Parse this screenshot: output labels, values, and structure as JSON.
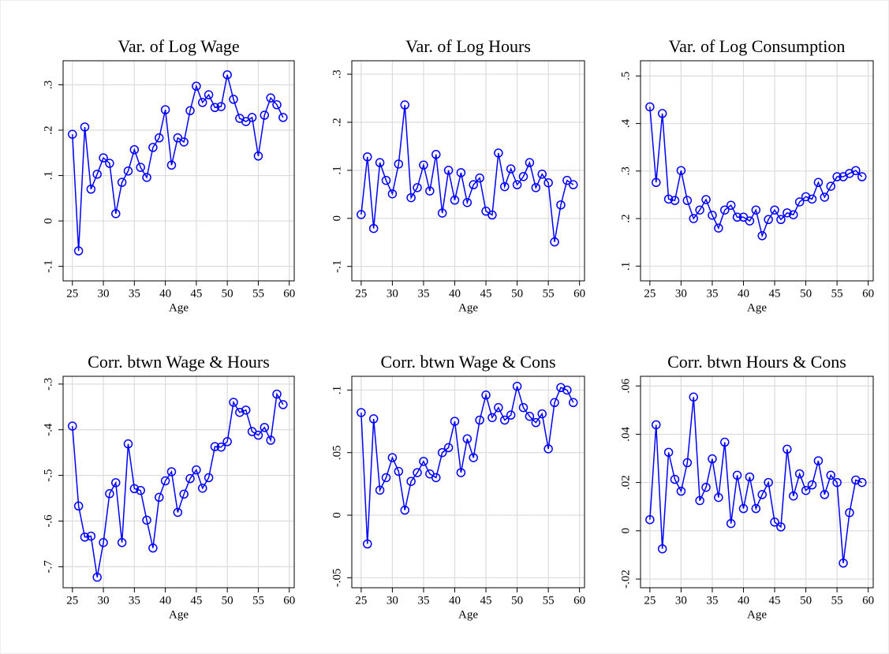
{
  "chart_data": [
    {
      "type": "line",
      "title": "Var. of Log Wage",
      "xlabel": "Age",
      "x": [
        25,
        26,
        27,
        28,
        29,
        30,
        31,
        32,
        33,
        34,
        35,
        36,
        37,
        38,
        39,
        40,
        41,
        42,
        43,
        44,
        45,
        46,
        47,
        48,
        49,
        50,
        51,
        52,
        53,
        54,
        55,
        56,
        57,
        58,
        59
      ],
      "series": [
        {
          "color": "#0000ff",
          "values": [
            0.191,
            -0.066,
            0.207,
            0.07,
            0.103,
            0.139,
            0.127,
            0.016,
            0.085,
            0.11,
            0.157,
            0.118,
            0.096,
            0.162,
            0.183,
            0.245,
            0.123,
            0.183,
            0.174,
            0.243,
            0.297,
            0.261,
            0.278,
            0.25,
            0.252,
            0.322,
            0.268,
            0.226,
            0.219,
            0.228,
            0.143,
            0.233,
            0.271,
            0.256,
            0.228
          ]
        }
      ],
      "xlim": [
        23.5,
        60.8
      ],
      "ylim": [
        -0.132,
        0.353
      ],
      "xticks": [
        25,
        30,
        35,
        40,
        45,
        50,
        55,
        60
      ],
      "yticks": [
        {
          "value": -0.1,
          "label": "-.1"
        },
        0,
        {
          "value": 0.1,
          "label": ".1"
        },
        {
          "value": 0.2,
          "label": ".2"
        },
        {
          "value": 0.3,
          "label": ".3"
        }
      ],
      "grid": true
    },
    {
      "type": "line",
      "title": "Var. of Log Hours",
      "xlabel": "Age",
      "x": [
        25,
        26,
        27,
        28,
        29,
        30,
        31,
        32,
        33,
        34,
        35,
        36,
        37,
        38,
        39,
        40,
        41,
        42,
        43,
        44,
        45,
        46,
        47,
        48,
        49,
        50,
        51,
        52,
        53,
        54,
        55,
        56,
        57,
        58,
        59
      ],
      "series": [
        {
          "color": "#0000ff",
          "values": [
            0.008,
            0.128,
            -0.021,
            0.116,
            0.079,
            0.051,
            0.113,
            0.236,
            0.043,
            0.064,
            0.111,
            0.057,
            0.133,
            0.011,
            0.1,
            0.038,
            0.095,
            0.033,
            0.07,
            0.084,
            0.015,
            0.007,
            0.136,
            0.066,
            0.103,
            0.07,
            0.087,
            0.116,
            0.064,
            0.092,
            0.074,
            -0.049,
            0.028,
            0.079,
            0.07
          ]
        }
      ],
      "xlim": [
        23.5,
        60.8
      ],
      "ylim": [
        -0.13,
        0.328
      ],
      "xticks": [
        25,
        30,
        35,
        40,
        45,
        50,
        55,
        60
      ],
      "yticks": [
        {
          "value": -0.1,
          "label": "-.1"
        },
        0,
        {
          "value": 0.1,
          "label": ".1"
        },
        {
          "value": 0.2,
          "label": ".2"
        },
        {
          "value": 0.3,
          "label": ".3"
        }
      ],
      "grid": true
    },
    {
      "type": "line",
      "title": "Var. of Log Consumption",
      "xlabel": "Age",
      "x": [
        25,
        26,
        27,
        28,
        29,
        30,
        31,
        32,
        33,
        34,
        35,
        36,
        37,
        38,
        39,
        40,
        41,
        42,
        43,
        44,
        45,
        46,
        47,
        48,
        49,
        50,
        51,
        52,
        53,
        54,
        55,
        56,
        57,
        58,
        59
      ],
      "series": [
        {
          "color": "#0000ff",
          "values": [
            0.435,
            0.276,
            0.421,
            0.241,
            0.238,
            0.301,
            0.238,
            0.2,
            0.218,
            0.24,
            0.207,
            0.18,
            0.218,
            0.228,
            0.203,
            0.203,
            0.195,
            0.218,
            0.164,
            0.198,
            0.218,
            0.198,
            0.212,
            0.208,
            0.235,
            0.246,
            0.241,
            0.276,
            0.245,
            0.268,
            0.288,
            0.288,
            0.295,
            0.301,
            0.288
          ]
        }
      ],
      "xlim": [
        23.5,
        60.8
      ],
      "ylim": [
        0.069,
        0.532
      ],
      "xticks": [
        25,
        30,
        35,
        40,
        45,
        50,
        55,
        60
      ],
      "yticks": [
        {
          "value": 0.1,
          "label": ".1"
        },
        {
          "value": 0.2,
          "label": ".2"
        },
        {
          "value": 0.3,
          "label": ".3"
        },
        {
          "value": 0.4,
          "label": ".4"
        },
        {
          "value": 0.5,
          "label": ".5"
        }
      ],
      "grid": true
    },
    {
      "type": "line",
      "title": "Corr. btwn Wage & Hours",
      "xlabel": "Age",
      "x": [
        25,
        26,
        27,
        28,
        29,
        30,
        31,
        32,
        33,
        34,
        35,
        36,
        37,
        38,
        39,
        40,
        41,
        42,
        43,
        44,
        45,
        46,
        47,
        48,
        49,
        50,
        51,
        52,
        53,
        54,
        55,
        56,
        57,
        58,
        59
      ],
      "series": [
        {
          "color": "#0000ff",
          "values": [
            -0.392,
            -0.567,
            -0.635,
            -0.633,
            -0.723,
            -0.647,
            -0.54,
            -0.516,
            -0.647,
            -0.431,
            -0.529,
            -0.533,
            -0.598,
            -0.659,
            -0.548,
            -0.512,
            -0.492,
            -0.581,
            -0.541,
            -0.507,
            -0.488,
            -0.528,
            -0.505,
            -0.437,
            -0.438,
            -0.426,
            -0.34,
            -0.362,
            -0.357,
            -0.404,
            -0.412,
            -0.395,
            -0.423,
            -0.322,
            -0.345
          ]
        }
      ],
      "xlim": [
        23.5,
        60.8
      ],
      "ylim": [
        -0.746,
        -0.283
      ],
      "xticks": [
        25,
        30,
        35,
        40,
        45,
        50,
        55,
        60
      ],
      "yticks": [
        {
          "value": -0.7,
          "label": "-.7"
        },
        {
          "value": -0.6,
          "label": "-.6"
        },
        {
          "value": -0.5,
          "label": "-.5"
        },
        {
          "value": -0.4,
          "label": "-.4"
        },
        {
          "value": -0.3,
          "label": "-.3"
        }
      ],
      "grid": true
    },
    {
      "type": "line",
      "title": "Corr. btwn Wage & Cons",
      "xlabel": "Age",
      "x": [
        25,
        26,
        27,
        28,
        29,
        30,
        31,
        32,
        33,
        34,
        35,
        36,
        37,
        38,
        39,
        40,
        41,
        42,
        43,
        44,
        45,
        46,
        47,
        48,
        49,
        50,
        51,
        52,
        53,
        54,
        55,
        56,
        57,
        58,
        59
      ],
      "series": [
        {
          "color": "#0000ff",
          "values": [
            0.082,
            -0.023,
            0.077,
            0.02,
            0.03,
            0.046,
            0.035,
            0.004,
            0.027,
            0.034,
            0.043,
            0.033,
            0.03,
            0.05,
            0.054,
            0.075,
            0.034,
            0.061,
            0.046,
            0.076,
            0.096,
            0.078,
            0.086,
            0.076,
            0.08,
            0.103,
            0.086,
            0.079,
            0.074,
            0.081,
            0.053,
            0.09,
            0.102,
            0.1,
            0.09
          ]
        }
      ],
      "xlim": [
        23.5,
        60.8
      ],
      "ylim": [
        -0.058,
        0.111
      ],
      "xticks": [
        25,
        30,
        35,
        40,
        45,
        50,
        55,
        60
      ],
      "yticks": [
        {
          "value": -0.05,
          "label": "-.05"
        },
        0,
        {
          "value": 0.05,
          "label": ".05"
        },
        {
          "value": 0.1,
          "label": ".1"
        }
      ],
      "grid": true
    },
    {
      "type": "line",
      "title": "Corr. btwn Hours & Cons",
      "xlabel": "Age",
      "x": [
        25,
        26,
        27,
        28,
        29,
        30,
        31,
        32,
        33,
        34,
        35,
        36,
        37,
        38,
        39,
        40,
        41,
        42,
        43,
        44,
        45,
        46,
        47,
        48,
        49,
        50,
        51,
        52,
        53,
        54,
        55,
        56,
        57,
        58,
        59
      ],
      "series": [
        {
          "color": "#0000ff",
          "values": [
            0.0046,
            0.0439,
            -0.0075,
            0.0325,
            0.0213,
            0.0164,
            0.0282,
            0.0554,
            0.0125,
            0.018,
            0.0298,
            0.0138,
            0.0367,
            0.003,
            0.023,
            0.0092,
            0.0223,
            0.0092,
            0.015,
            0.02,
            0.0036,
            0.0016,
            0.0338,
            0.0144,
            0.0236,
            0.0167,
            0.019,
            0.029,
            0.015,
            0.023,
            0.02,
            -0.0134,
            0.0075,
            0.021,
            0.02
          ]
        }
      ],
      "xlim": [
        23.5,
        60.8
      ],
      "ylim": [
        -0.0236,
        0.064
      ],
      "xticks": [
        25,
        30,
        35,
        40,
        45,
        50,
        55,
        60
      ],
      "yticks": [
        {
          "value": -0.02,
          "label": "-.02"
        },
        0,
        {
          "value": 0.02,
          "label": ".02"
        },
        {
          "value": 0.04,
          "label": ".04"
        },
        {
          "value": 0.06,
          "label": ".06"
        }
      ],
      "grid": true
    }
  ]
}
